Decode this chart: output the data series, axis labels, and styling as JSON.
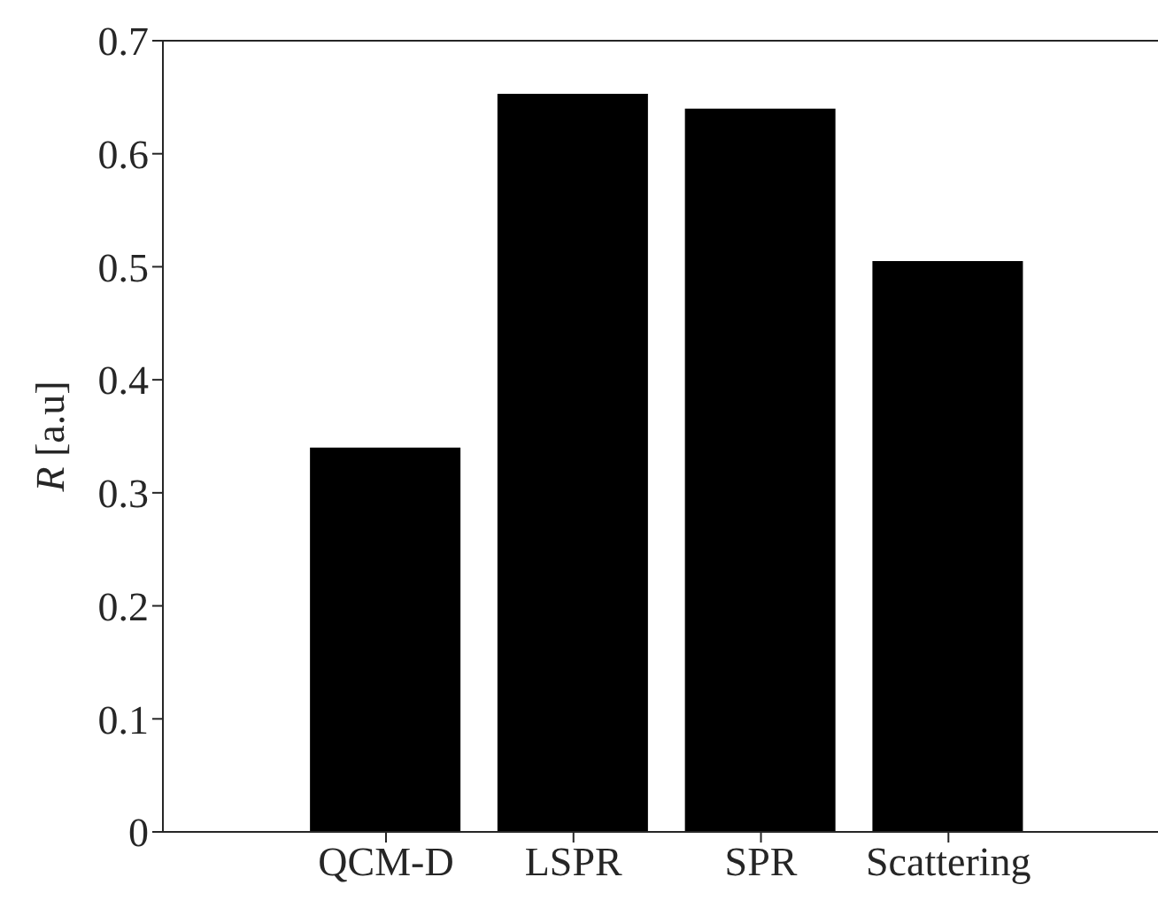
{
  "chart_data": {
    "type": "bar",
    "ylabel": "R [a.u]",
    "categories": [
      "QCM-D",
      "LSPR",
      "SPR",
      "Scattering"
    ],
    "values": [
      0.34,
      0.653,
      0.64,
      0.505
    ],
    "color": "#000000",
    "ylim": [
      0,
      0.7
    ],
    "yticks": [
      0,
      0.1,
      0.2,
      0.3,
      0.4,
      0.5,
      0.6,
      0.7
    ],
    "grid": false,
    "legend": false
  }
}
